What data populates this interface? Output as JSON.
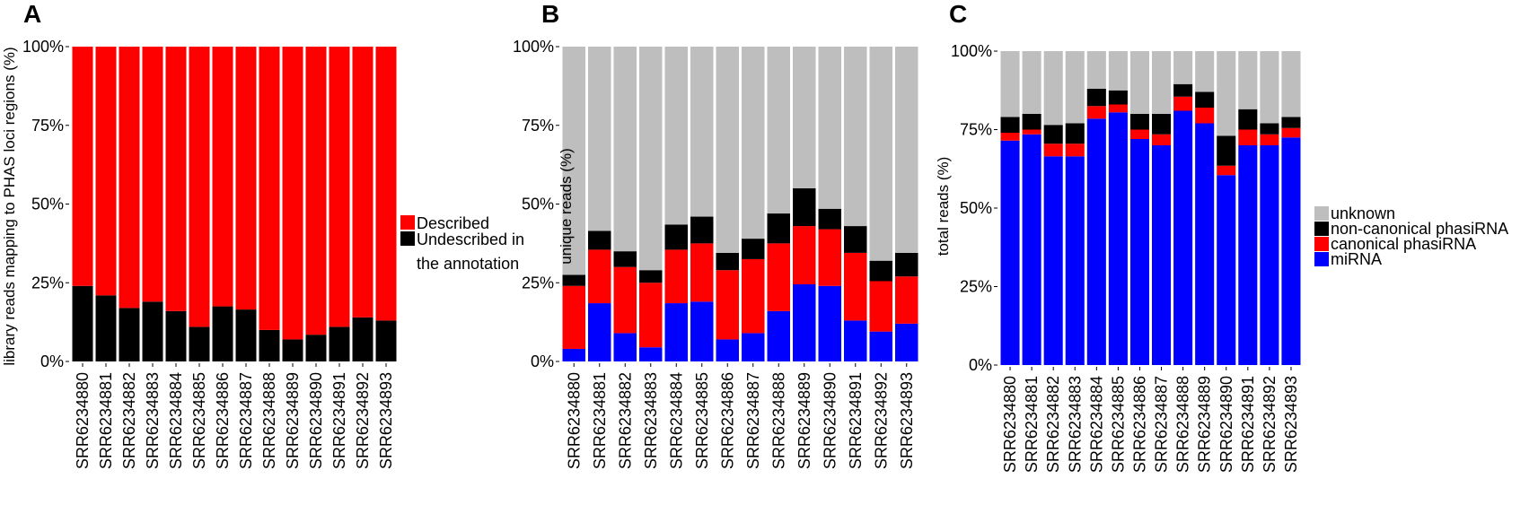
{
  "chart_data": [
    {
      "panel": "A",
      "type": "bar",
      "stacked": true,
      "ylabel": "library reads mapping to PHAS loci regions (%)",
      "xlabel": "",
      "ylim": [
        0,
        100
      ],
      "yticks": [
        "0%",
        "25%",
        "50%",
        "75%",
        "100%"
      ],
      "categories": [
        "SRR6234880",
        "SRR6234881",
        "SRR6234882",
        "SRR6234883",
        "SRR6234884",
        "SRR6234885",
        "SRR6234886",
        "SRR6234887",
        "SRR6234888",
        "SRR6234889",
        "SRR6234890",
        "SRR6234891",
        "SRR6234892",
        "SRR6234893"
      ],
      "series": [
        {
          "name": "Undescribed in the annotation",
          "color": "#000000",
          "values": [
            24,
            21,
            17,
            19,
            16,
            11,
            17.5,
            16.5,
            10,
            7,
            8.5,
            11,
            14,
            13
          ]
        },
        {
          "name": "Described",
          "color": "#ff0000",
          "values": [
            76,
            79,
            83,
            81,
            84,
            89,
            82.5,
            83.5,
            90,
            93,
            91.5,
            89,
            86,
            87
          ]
        }
      ],
      "legend": {
        "position": "right",
        "labels": [
          "Described",
          "Undescribed in",
          "the annotation"
        ]
      }
    },
    {
      "panel": "B",
      "type": "bar",
      "stacked": true,
      "ylabel": "unique reads (%)",
      "xlabel": "",
      "ylim": [
        0,
        100
      ],
      "yticks": [
        "0%",
        "25%",
        "50%",
        "75%",
        "100%"
      ],
      "categories": [
        "SRR6234880",
        "SRR6234881",
        "SRR6234882",
        "SRR6234883",
        "SRR6234884",
        "SRR6234885",
        "SRR6234886",
        "SRR6234887",
        "SRR6234888",
        "SRR6234889",
        "SRR6234890",
        "SRR6234891",
        "SRR6234892",
        "SRR6234893"
      ],
      "series": [
        {
          "name": "miRNA",
          "color": "#0000ff",
          "values": [
            4,
            18.5,
            9,
            4.5,
            18.5,
            19,
            7,
            9,
            16,
            24.5,
            24,
            13,
            9.5,
            12
          ]
        },
        {
          "name": "canonical phasiRNA",
          "color": "#ff0000",
          "values": [
            20,
            17,
            21,
            20.5,
            17,
            18.5,
            22,
            23.5,
            21.5,
            18.5,
            18,
            21.5,
            16,
            15
          ]
        },
        {
          "name": "non-canonical phasiRNA",
          "color": "#000000",
          "values": [
            3.5,
            6,
            5,
            4,
            8,
            8.5,
            5.5,
            6.5,
            9.5,
            12,
            6.5,
            8.5,
            6.5,
            7.5
          ]
        },
        {
          "name": "unknown",
          "color": "#bebebe",
          "values": [
            72.5,
            58.5,
            65,
            71,
            56.5,
            54,
            65.5,
            61,
            53,
            45,
            51.5,
            57,
            68,
            65.5
          ]
        }
      ]
    },
    {
      "panel": "C",
      "type": "bar",
      "stacked": true,
      "ylabel": "total reads (%)",
      "xlabel": "",
      "ylim": [
        0,
        100
      ],
      "yticks": [
        "0%",
        "25%",
        "50%",
        "75%",
        "100%"
      ],
      "categories": [
        "SRR6234880",
        "SRR6234881",
        "SRR6234882",
        "SRR6234883",
        "SRR6234884",
        "SRR6234885",
        "SRR6234886",
        "SRR6234887",
        "SRR6234888",
        "SRR6234889",
        "SRR6234890",
        "SRR6234891",
        "SRR6234892",
        "SRR6234893"
      ],
      "series": [
        {
          "name": "miRNA",
          "color": "#0000ff",
          "values": [
            71.5,
            73.5,
            66.5,
            66.5,
            78.5,
            80.5,
            72,
            70,
            81,
            77,
            60.5,
            70,
            70,
            72.5
          ]
        },
        {
          "name": "canonical phasiRNA",
          "color": "#ff0000",
          "values": [
            2.5,
            1.5,
            4,
            4,
            4,
            2.5,
            3,
            3.5,
            4.5,
            5,
            3,
            5,
            3.5,
            3
          ]
        },
        {
          "name": "non-canonical phasiRNA",
          "color": "#000000",
          "values": [
            5,
            5,
            6,
            6.5,
            5.5,
            4.5,
            5,
            6.5,
            4,
            5,
            9.5,
            6.5,
            3.5,
            3.5
          ]
        },
        {
          "name": "unknown",
          "color": "#bebebe",
          "values": [
            21,
            20,
            23.5,
            23,
            12,
            12.5,
            20,
            20,
            10.5,
            13,
            27,
            18.5,
            23,
            21
          ]
        }
      ],
      "legend": {
        "position": "right",
        "labels": [
          "unknown",
          "non-canonical phasiRNA",
          "canonical phasiRNA",
          "miRNA"
        ]
      }
    }
  ]
}
